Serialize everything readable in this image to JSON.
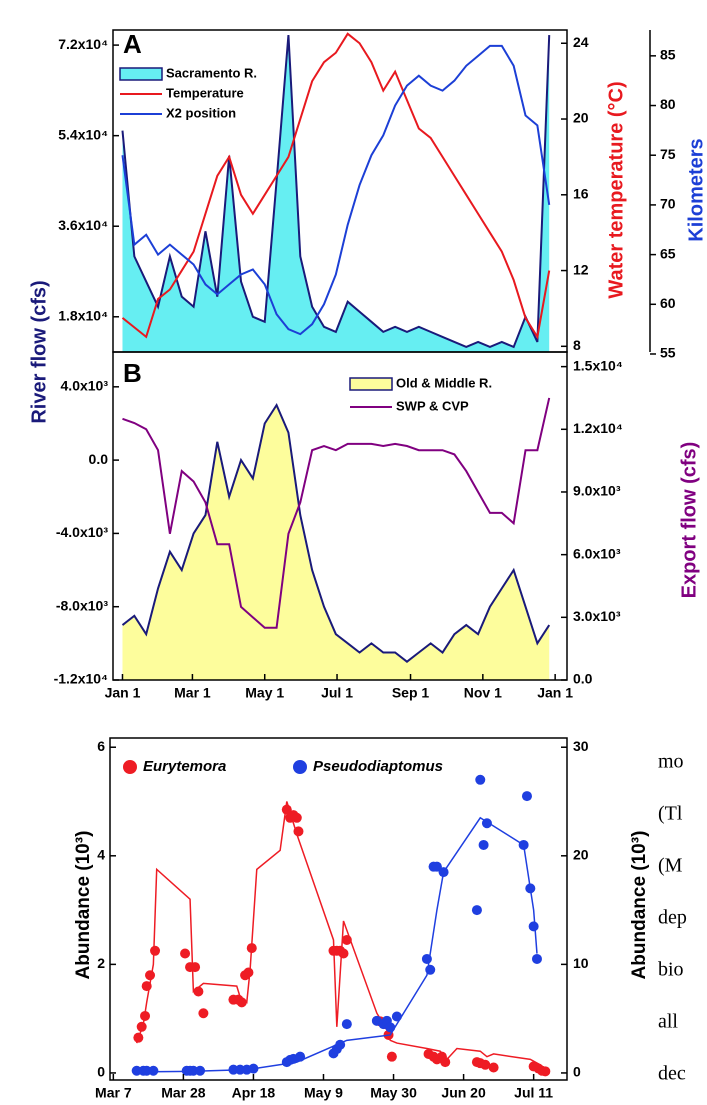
{
  "chart_data": [
    {
      "type": "line",
      "panel_label": "A",
      "ylabel": "River flow (cfs)",
      "y2label": "Water temperature (°C)",
      "y3label": "Kilometers",
      "label_colors": {
        "ylabel": "#1a1a7a",
        "y2label": "#e8191f",
        "y3label": "#1c3fd6"
      },
      "xlim": [
        -8,
        375
      ],
      "x": [
        0,
        10,
        20,
        30,
        40,
        50,
        60,
        70,
        80,
        90,
        100,
        110,
        120,
        130,
        140,
        150,
        160,
        170,
        180,
        190,
        200,
        210,
        220,
        230,
        240,
        250,
        260,
        270,
        280,
        290,
        300,
        310,
        320,
        330,
        340,
        350,
        360
      ],
      "ylim": [
        11000,
        75000
      ],
      "yticks": [
        {
          "value": 18000,
          "label": "1.8x10⁴"
        },
        {
          "value": 36000,
          "label": "3.6x10⁴"
        },
        {
          "value": 54000,
          "label": "5.4x10⁴"
        },
        {
          "value": 72000,
          "label": "7.2x10⁴"
        }
      ],
      "y2lim": [
        7.7,
        24.7
      ],
      "y2ticks": [
        8,
        12,
        16,
        20,
        24
      ],
      "y3lim": [
        55.2,
        87.6
      ],
      "y3ticks": [
        55,
        60,
        65,
        70,
        75,
        80,
        85
      ],
      "series": [
        {
          "name": "Sacramento R.",
          "color": "#1a1a7a",
          "fill": "#66eef2",
          "values": [
            55000,
            30000,
            25000,
            20000,
            30000,
            22000,
            20000,
            35000,
            22000,
            50000,
            25000,
            18000,
            17000,
            45000,
            74000,
            30000,
            20000,
            16000,
            15000,
            21000,
            19000,
            17000,
            15000,
            16000,
            15000,
            16000,
            15000,
            14000,
            13000,
            12000,
            13000,
            12000,
            13000,
            12000,
            18000,
            13000,
            74000
          ]
        },
        {
          "name": "Temperature",
          "color": "#e8191f",
          "axis": "y2",
          "values": [
            9.5,
            9,
            8.5,
            10.5,
            11,
            12,
            13,
            15,
            17,
            18,
            16,
            15,
            16,
            17,
            18,
            20,
            22,
            23,
            23.5,
            24.5,
            24,
            23,
            21.5,
            22.5,
            21,
            19.5,
            19,
            18,
            17,
            16,
            15,
            14,
            13,
            11.5,
            9.5,
            8.5,
            12
          ]
        },
        {
          "name": "X2 position",
          "color": "#1c3fd6",
          "axis": "y3",
          "values": [
            75,
            66,
            67,
            65,
            66,
            65,
            64,
            62,
            61,
            62,
            63,
            63.5,
            62,
            59,
            57.5,
            57,
            58,
            60,
            63,
            68,
            72,
            75,
            77,
            80,
            82,
            83,
            82,
            81.5,
            82.5,
            84,
            85,
            86,
            86,
            84,
            79,
            78,
            70
          ]
        }
      ]
    },
    {
      "type": "line",
      "panel_label": "B",
      "y2label": "Export flow (cfs)",
      "label_colors": {
        "y2label": "#800080"
      },
      "xlim": [
        -8,
        375
      ],
      "xticks": [
        {
          "value": 0,
          "label": "Jan 1"
        },
        {
          "value": 59,
          "label": "Mar 1"
        },
        {
          "value": 120,
          "label": "May 1"
        },
        {
          "value": 181,
          "label": "Jul 1"
        },
        {
          "value": 243,
          "label": "Sep 1"
        },
        {
          "value": 304,
          "label": "Nov 1"
        },
        {
          "value": 365,
          "label": "Jan 1"
        }
      ],
      "x": [
        0,
        10,
        20,
        30,
        40,
        50,
        60,
        70,
        80,
        90,
        100,
        110,
        120,
        130,
        140,
        150,
        160,
        170,
        180,
        190,
        200,
        210,
        220,
        230,
        240,
        250,
        260,
        270,
        280,
        290,
        300,
        310,
        320,
        330,
        340,
        350,
        360
      ],
      "ylim": [
        -12000,
        5900
      ],
      "yticks": [
        {
          "value": -12000,
          "label": "-1.2x10⁴"
        },
        {
          "value": -8000,
          "label": "-8.0x10³"
        },
        {
          "value": -4000,
          "label": "-4.0x10³"
        },
        {
          "value": 0,
          "label": "0.0"
        },
        {
          "value": 4000,
          "label": "4.0x10³"
        }
      ],
      "y2lim": [
        0,
        15700
      ],
      "y2ticks": [
        {
          "value": 0,
          "label": "0.0"
        },
        {
          "value": 3000,
          "label": "3.0x10³"
        },
        {
          "value": 6000,
          "label": "6.0x10³"
        },
        {
          "value": 9000,
          "label": "9.0x10³"
        },
        {
          "value": 12000,
          "label": "1.2x10⁴"
        },
        {
          "value": 15000,
          "label": "1.5x10⁴"
        }
      ],
      "series": [
        {
          "name": "Old & Middle R.",
          "color": "#1a1a7a",
          "fill": "#fdfd9c",
          "values": [
            -9000,
            -8500,
            -9500,
            -7000,
            -5000,
            -6000,
            -4000,
            -3000,
            1000,
            -2000,
            0,
            -1000,
            2000,
            3000,
            1500,
            -3000,
            -6000,
            -8000,
            -9500,
            -10000,
            -10500,
            -10000,
            -10500,
            -10500,
            -11000,
            -10500,
            -10000,
            -10500,
            -9500,
            -9000,
            -9500,
            -8000,
            -7000,
            -6000,
            -8000,
            -10000,
            -9000
          ]
        },
        {
          "name": "SWP & CVP",
          "color": "#800080",
          "axis": "y2",
          "values": [
            12500,
            12300,
            12000,
            11000,
            7000,
            10000,
            9500,
            8500,
            6500,
            6500,
            3500,
            3000,
            2500,
            2500,
            7000,
            8500,
            11000,
            11200,
            11000,
            11300,
            11300,
            11300,
            11200,
            11300,
            11200,
            11000,
            11000,
            11000,
            10800,
            10000,
            9000,
            8000,
            8000,
            7500,
            11000,
            11000,
            13500
          ]
        }
      ]
    },
    {
      "type": "scatter",
      "ylabel": "Abundance (10³)",
      "y2label": "Abundance (10³)",
      "xlim": [
        -1,
        136
      ],
      "xticks": [
        {
          "value": 0,
          "label": "Mar 7"
        },
        {
          "value": 21,
          "label": "Mar 28"
        },
        {
          "value": 42,
          "label": "Apr 18"
        },
        {
          "value": 63,
          "label": "May 9"
        },
        {
          "value": 84,
          "label": "May 30"
        },
        {
          "value": 105,
          "label": "Jun 20"
        },
        {
          "value": 126,
          "label": "Jul 11"
        }
      ],
      "ylim": [
        -0.13,
        6.17
      ],
      "yticks": [
        0,
        2,
        4,
        6
      ],
      "y2lim": [
        -0.65,
        30.85
      ],
      "y2ticks": [
        0,
        10,
        20,
        30
      ],
      "series": [
        {
          "name": "Eurytemora",
          "color": "#ee1c24",
          "x": [
            7.5,
            8.5,
            9.5,
            10,
            11,
            12.5,
            21.5,
            23,
            24.5,
            25.5,
            27,
            36,
            37.5,
            38.5,
            39.5,
            40.5,
            41.5,
            52,
            53,
            54,
            55,
            55.5,
            66,
            67,
            68,
            69,
            70,
            80,
            81.5,
            82.5,
            83.5,
            94.5,
            96,
            97,
            98.5,
            99.5,
            109,
            110,
            111.5,
            114,
            126,
            127.5,
            128.5,
            129.5
          ],
          "values": [
            0.65,
            0.85,
            1.05,
            1.6,
            1.8,
            2.25,
            2.2,
            1.95,
            1.95,
            1.5,
            1.1,
            1.35,
            1.35,
            1.3,
            1.8,
            1.85,
            2.3,
            4.85,
            4.7,
            4.75,
            4.7,
            4.45,
            2.25,
            2.25,
            2.25,
            2.2,
            2.45,
            0.95,
            0.9,
            0.7,
            0.3,
            0.35,
            0.3,
            0.25,
            0.3,
            0.2,
            0.2,
            0.18,
            0.15,
            0.1,
            0.12,
            0.08,
            0.04,
            0.03
          ],
          "line_x": [
            7,
            9,
            10,
            12,
            13,
            23,
            24,
            27,
            37,
            38,
            40,
            41,
            43,
            50,
            52,
            54,
            55,
            66,
            67,
            69,
            79,
            82,
            83,
            85,
            94,
            98,
            100,
            103,
            110,
            112,
            114,
            125,
            128,
            130
          ],
          "line_values": [
            0.55,
            0.9,
            1.3,
            2.0,
            3.75,
            3.2,
            1.5,
            1.65,
            1.6,
            1.4,
            1.3,
            1.9,
            3.75,
            4.1,
            5.0,
            4.6,
            4.4,
            2.45,
            0.85,
            2.8,
            1.1,
            0.8,
            0.6,
            0.55,
            0.45,
            0.4,
            0.25,
            0.45,
            0.4,
            0.3,
            0.35,
            0.25,
            0.15,
            0.02
          ]
        },
        {
          "name": "Pseudodiaptomus",
          "color": "#1f3fe0",
          "axis": "y2",
          "x": [
            7,
            9,
            10,
            12,
            22,
            23,
            24,
            26,
            36,
            38,
            40,
            42,
            52,
            53,
            54,
            56,
            66,
            67,
            68,
            70,
            79,
            81,
            82,
            83,
            85,
            94,
            95,
            96,
            97,
            99,
            109,
            110,
            111,
            112,
            123,
            124,
            125,
            126,
            127
          ],
          "values": [
            0.2,
            0.2,
            0.2,
            0.2,
            0.2,
            0.2,
            0.2,
            0.2,
            0.3,
            0.3,
            0.3,
            0.4,
            1,
            1.2,
            1.3,
            1.5,
            1.8,
            2.2,
            2.6,
            4.5,
            4.8,
            4.5,
            4.8,
            4.2,
            5.2,
            10.5,
            9.5,
            19,
            19,
            18.5,
            15,
            27,
            21,
            23,
            21,
            25.5,
            17,
            13.5,
            10.5
          ],
          "line_x": [
            7,
            23,
            40,
            55,
            70,
            83,
            94,
            97,
            99,
            110,
            123,
            126,
            127
          ],
          "line_values": [
            0.1,
            0.15,
            0.3,
            1.0,
            3.0,
            3.5,
            9,
            15,
            18.5,
            23.5,
            21,
            15,
            11
          ]
        }
      ]
    }
  ],
  "side_text": [
    "mo",
    "(Tl",
    "(M",
    "dep",
    "bio",
    "all",
    "dec"
  ]
}
